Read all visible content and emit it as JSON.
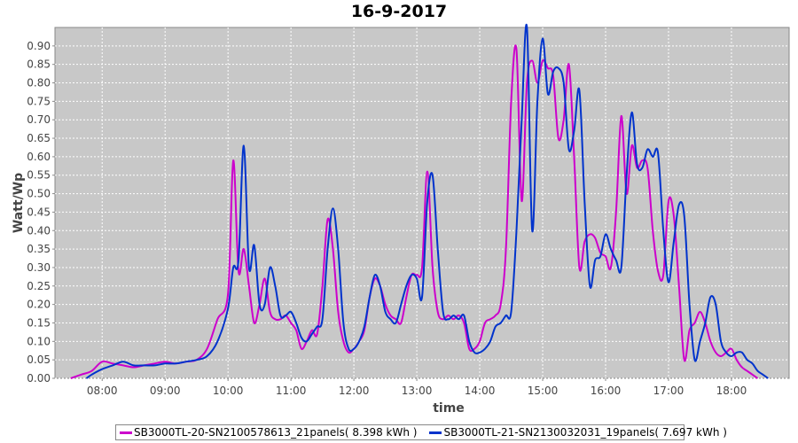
{
  "chart_data": {
    "type": "line",
    "title": "16-9-2017",
    "xlabel": "time",
    "ylabel": "Watt/Wp",
    "x_range": [
      "07:15",
      "18:55"
    ],
    "ylim": [
      0,
      0.95
    ],
    "x_ticks": [
      "08:00",
      "09:00",
      "10:00",
      "11:00",
      "12:00",
      "13:00",
      "14:00",
      "15:00",
      "16:00",
      "17:00",
      "18:00"
    ],
    "y_ticks": [
      "0.00",
      "0.05",
      "0.10",
      "0.15",
      "0.20",
      "0.25",
      "0.30",
      "0.35",
      "0.40",
      "0.45",
      "0.50",
      "0.55",
      "0.60",
      "0.65",
      "0.70",
      "0.75",
      "0.80",
      "0.85",
      "0.90"
    ],
    "grid": true,
    "legend_position": "bottom",
    "background_color": "#c8c8c8",
    "series": [
      {
        "name": "SB3000TL-20-SN2100578613_21panels( 8.398 kWh )",
        "color": "#cc00cc",
        "points": [
          [
            "07:30",
            0.0
          ],
          [
            "07:40",
            0.01
          ],
          [
            "07:50",
            0.02
          ],
          [
            "08:00",
            0.045
          ],
          [
            "08:10",
            0.04
          ],
          [
            "08:20",
            0.035
          ],
          [
            "08:30",
            0.03
          ],
          [
            "08:40",
            0.035
          ],
          [
            "08:50",
            0.04
          ],
          [
            "09:00",
            0.045
          ],
          [
            "09:10",
            0.04
          ],
          [
            "09:20",
            0.045
          ],
          [
            "09:30",
            0.05
          ],
          [
            "09:40",
            0.08
          ],
          [
            "09:50",
            0.16
          ],
          [
            "10:00",
            0.23
          ],
          [
            "10:05",
            0.59
          ],
          [
            "10:10",
            0.29
          ],
          [
            "10:15",
            0.35
          ],
          [
            "10:20",
            0.25
          ],
          [
            "10:25",
            0.15
          ],
          [
            "10:30",
            0.2
          ],
          [
            "10:35",
            0.27
          ],
          [
            "10:40",
            0.18
          ],
          [
            "10:45",
            0.16
          ],
          [
            "10:50",
            0.16
          ],
          [
            "10:55",
            0.17
          ],
          [
            "11:00",
            0.15
          ],
          [
            "11:05",
            0.13
          ],
          [
            "11:10",
            0.08
          ],
          [
            "11:15",
            0.1
          ],
          [
            "11:20",
            0.13
          ],
          [
            "11:25",
            0.12
          ],
          [
            "11:30",
            0.25
          ],
          [
            "11:35",
            0.43
          ],
          [
            "11:40",
            0.35
          ],
          [
            "11:45",
            0.18
          ],
          [
            "11:50",
            0.1
          ],
          [
            "11:55",
            0.07
          ],
          [
            "12:00",
            0.08
          ],
          [
            "12:05",
            0.1
          ],
          [
            "12:10",
            0.13
          ],
          [
            "12:15",
            0.22
          ],
          [
            "12:20",
            0.27
          ],
          [
            "12:25",
            0.25
          ],
          [
            "12:30",
            0.2
          ],
          [
            "12:35",
            0.17
          ],
          [
            "12:40",
            0.16
          ],
          [
            "12:45",
            0.15
          ],
          [
            "12:50",
            0.22
          ],
          [
            "12:55",
            0.28
          ],
          [
            "13:00",
            0.28
          ],
          [
            "13:05",
            0.3
          ],
          [
            "13:10",
            0.56
          ],
          [
            "13:15",
            0.3
          ],
          [
            "13:20",
            0.18
          ],
          [
            "13:25",
            0.16
          ],
          [
            "13:30",
            0.17
          ],
          [
            "13:35",
            0.16
          ],
          [
            "13:40",
            0.17
          ],
          [
            "13:45",
            0.15
          ],
          [
            "13:50",
            0.08
          ],
          [
            "13:55",
            0.08
          ],
          [
            "14:00",
            0.1
          ],
          [
            "14:05",
            0.15
          ],
          [
            "14:10",
            0.16
          ],
          [
            "14:15",
            0.17
          ],
          [
            "14:20",
            0.2
          ],
          [
            "14:25",
            0.35
          ],
          [
            "14:30",
            0.75
          ],
          [
            "14:35",
            0.89
          ],
          [
            "14:40",
            0.48
          ],
          [
            "14:45",
            0.8
          ],
          [
            "14:50",
            0.86
          ],
          [
            "14:55",
            0.8
          ],
          [
            "15:00",
            0.86
          ],
          [
            "15:05",
            0.84
          ],
          [
            "15:10",
            0.82
          ],
          [
            "15:15",
            0.65
          ],
          [
            "15:20",
            0.7
          ],
          [
            "15:25",
            0.85
          ],
          [
            "15:30",
            0.6
          ],
          [
            "15:35",
            0.3
          ],
          [
            "15:40",
            0.37
          ],
          [
            "15:45",
            0.39
          ],
          [
            "15:50",
            0.38
          ],
          [
            "15:55",
            0.34
          ],
          [
            "16:00",
            0.33
          ],
          [
            "16:05",
            0.3
          ],
          [
            "16:10",
            0.45
          ],
          [
            "16:15",
            0.71
          ],
          [
            "16:20",
            0.5
          ],
          [
            "16:25",
            0.63
          ],
          [
            "16:30",
            0.57
          ],
          [
            "16:35",
            0.59
          ],
          [
            "16:40",
            0.57
          ],
          [
            "16:45",
            0.4
          ],
          [
            "16:50",
            0.29
          ],
          [
            "16:55",
            0.28
          ],
          [
            "17:00",
            0.48
          ],
          [
            "17:05",
            0.44
          ],
          [
            "17:10",
            0.25
          ],
          [
            "17:15",
            0.05
          ],
          [
            "17:20",
            0.13
          ],
          [
            "17:25",
            0.15
          ],
          [
            "17:30",
            0.18
          ],
          [
            "17:35",
            0.15
          ],
          [
            "17:40",
            0.1
          ],
          [
            "17:45",
            0.07
          ],
          [
            "17:50",
            0.06
          ],
          [
            "17:55",
            0.07
          ],
          [
            "18:00",
            0.08
          ],
          [
            "18:05",
            0.05
          ],
          [
            "18:10",
            0.03
          ],
          [
            "18:15",
            0.02
          ],
          [
            "18:20",
            0.01
          ],
          [
            "18:25",
            0.0
          ]
        ]
      },
      {
        "name": "SB3000TL-21-SN2130032031_19panels( 7.697 kWh )",
        "color": "#0033cc",
        "points": [
          [
            "07:45",
            0.0
          ],
          [
            "07:50",
            0.01
          ],
          [
            "08:00",
            0.025
          ],
          [
            "08:10",
            0.035
          ],
          [
            "08:20",
            0.045
          ],
          [
            "08:30",
            0.035
          ],
          [
            "08:40",
            0.035
          ],
          [
            "08:50",
            0.035
          ],
          [
            "09:00",
            0.04
          ],
          [
            "09:10",
            0.04
          ],
          [
            "09:20",
            0.045
          ],
          [
            "09:30",
            0.05
          ],
          [
            "09:40",
            0.06
          ],
          [
            "09:50",
            0.1
          ],
          [
            "10:00",
            0.19
          ],
          [
            "10:05",
            0.3
          ],
          [
            "10:10",
            0.32
          ],
          [
            "10:15",
            0.63
          ],
          [
            "10:20",
            0.3
          ],
          [
            "10:25",
            0.36
          ],
          [
            "10:30",
            0.2
          ],
          [
            "10:35",
            0.2
          ],
          [
            "10:40",
            0.3
          ],
          [
            "10:45",
            0.25
          ],
          [
            "10:50",
            0.17
          ],
          [
            "10:55",
            0.17
          ],
          [
            "11:00",
            0.18
          ],
          [
            "11:05",
            0.15
          ],
          [
            "11:10",
            0.11
          ],
          [
            "11:15",
            0.1
          ],
          [
            "11:20",
            0.12
          ],
          [
            "11:25",
            0.14
          ],
          [
            "11:30",
            0.16
          ],
          [
            "11:35",
            0.35
          ],
          [
            "11:40",
            0.46
          ],
          [
            "11:45",
            0.35
          ],
          [
            "11:50",
            0.15
          ],
          [
            "11:55",
            0.08
          ],
          [
            "12:00",
            0.08
          ],
          [
            "12:05",
            0.1
          ],
          [
            "12:10",
            0.14
          ],
          [
            "12:15",
            0.22
          ],
          [
            "12:20",
            0.28
          ],
          [
            "12:25",
            0.25
          ],
          [
            "12:30",
            0.18
          ],
          [
            "12:35",
            0.16
          ],
          [
            "12:40",
            0.15
          ],
          [
            "12:45",
            0.2
          ],
          [
            "12:50",
            0.25
          ],
          [
            "12:55",
            0.28
          ],
          [
            "13:00",
            0.27
          ],
          [
            "13:05",
            0.22
          ],
          [
            "13:10",
            0.48
          ],
          [
            "13:15",
            0.55
          ],
          [
            "13:20",
            0.35
          ],
          [
            "13:25",
            0.18
          ],
          [
            "13:30",
            0.16
          ],
          [
            "13:35",
            0.17
          ],
          [
            "13:40",
            0.16
          ],
          [
            "13:45",
            0.17
          ],
          [
            "13:50",
            0.1
          ],
          [
            "13:55",
            0.07
          ],
          [
            "14:00",
            0.07
          ],
          [
            "14:05",
            0.08
          ],
          [
            "14:10",
            0.1
          ],
          [
            "14:15",
            0.14
          ],
          [
            "14:20",
            0.15
          ],
          [
            "14:25",
            0.17
          ],
          [
            "14:30",
            0.18
          ],
          [
            "14:35",
            0.4
          ],
          [
            "14:40",
            0.7
          ],
          [
            "14:45",
            0.95
          ],
          [
            "14:50",
            0.4
          ],
          [
            "14:55",
            0.75
          ],
          [
            "15:00",
            0.92
          ],
          [
            "15:05",
            0.77
          ],
          [
            "15:10",
            0.83
          ],
          [
            "15:15",
            0.84
          ],
          [
            "15:20",
            0.8
          ],
          [
            "15:25",
            0.62
          ],
          [
            "15:30",
            0.67
          ],
          [
            "15:35",
            0.78
          ],
          [
            "15:40",
            0.48
          ],
          [
            "15:45",
            0.25
          ],
          [
            "15:50",
            0.32
          ],
          [
            "15:55",
            0.33
          ],
          [
            "16:00",
            0.39
          ],
          [
            "16:05",
            0.35
          ],
          [
            "16:10",
            0.32
          ],
          [
            "16:15",
            0.3
          ],
          [
            "16:20",
            0.55
          ],
          [
            "16:25",
            0.72
          ],
          [
            "16:30",
            0.58
          ],
          [
            "16:35",
            0.57
          ],
          [
            "16:40",
            0.62
          ],
          [
            "16:45",
            0.6
          ],
          [
            "16:50",
            0.61
          ],
          [
            "16:55",
            0.4
          ],
          [
            "17:00",
            0.26
          ],
          [
            "17:05",
            0.37
          ],
          [
            "17:10",
            0.47
          ],
          [
            "17:15",
            0.44
          ],
          [
            "17:20",
            0.2
          ],
          [
            "17:25",
            0.05
          ],
          [
            "17:30",
            0.1
          ],
          [
            "17:35",
            0.15
          ],
          [
            "17:40",
            0.22
          ],
          [
            "17:45",
            0.2
          ],
          [
            "17:50",
            0.1
          ],
          [
            "17:55",
            0.07
          ],
          [
            "18:00",
            0.06
          ],
          [
            "18:05",
            0.07
          ],
          [
            "18:10",
            0.07
          ],
          [
            "18:15",
            0.05
          ],
          [
            "18:20",
            0.04
          ],
          [
            "18:25",
            0.02
          ],
          [
            "18:30",
            0.01
          ],
          [
            "18:35",
            0.0
          ]
        ]
      }
    ]
  }
}
